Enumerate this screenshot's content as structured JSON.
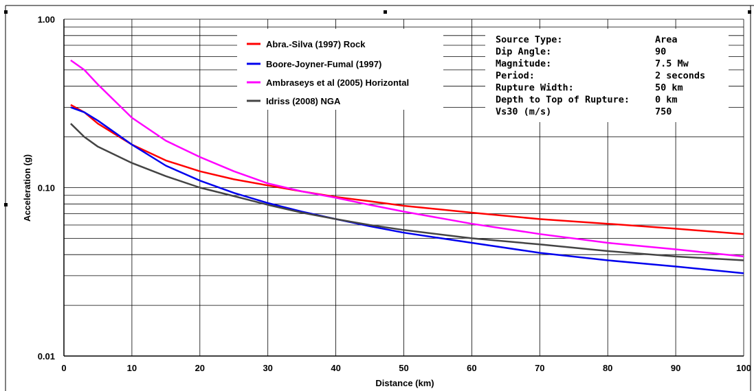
{
  "chart_data": {
    "type": "line",
    "xlabel": "Distance (km)",
    "ylabel": "Acceleration (g)",
    "xlim": [
      0,
      100
    ],
    "ylim": [
      0.01,
      1.0
    ],
    "y_scale": "log",
    "x_ticks": [
      "0",
      "10",
      "20",
      "30",
      "40",
      "50",
      "60",
      "70",
      "80",
      "90",
      "100"
    ],
    "y_ticks": [
      "1.00",
      "0.10",
      "0.01"
    ],
    "grid": true,
    "legend_position": "top-left",
    "series": [
      {
        "name": "Abra.-Silva (1997) Rock",
        "color": "#ff0000",
        "x": [
          1,
          3,
          5,
          10,
          15,
          20,
          25,
          30,
          35,
          40,
          45,
          50,
          60,
          70,
          80,
          90,
          100
        ],
        "y": [
          0.31,
          0.28,
          0.24,
          0.18,
          0.145,
          0.125,
          0.112,
          0.103,
          0.095,
          0.088,
          0.083,
          0.078,
          0.071,
          0.065,
          0.061,
          0.057,
          0.053
        ]
      },
      {
        "name": "Boore-Joyner-Fumal (1997)",
        "color": "#0000ee",
        "x": [
          1,
          3,
          5,
          10,
          15,
          20,
          25,
          30,
          35,
          40,
          45,
          50,
          60,
          70,
          80,
          90,
          100
        ],
        "y": [
          0.3,
          0.28,
          0.25,
          0.18,
          0.135,
          0.11,
          0.093,
          0.081,
          0.072,
          0.065,
          0.059,
          0.054,
          0.047,
          0.041,
          0.037,
          0.034,
          0.031
        ]
      },
      {
        "name": "Ambraseys et al (2005) Horizontal",
        "color": "#ff00ff",
        "x": [
          1,
          3,
          5,
          10,
          15,
          20,
          25,
          30,
          35,
          40,
          45,
          50,
          60,
          70,
          80,
          90,
          100
        ],
        "y": [
          0.57,
          0.5,
          0.41,
          0.26,
          0.19,
          0.152,
          0.125,
          0.106,
          0.095,
          0.087,
          0.079,
          0.072,
          0.061,
          0.053,
          0.047,
          0.043,
          0.039
        ]
      },
      {
        "name": "Idriss (2008) NGA",
        "color": "#444444",
        "x": [
          1,
          3,
          5,
          10,
          15,
          20,
          25,
          30,
          35,
          40,
          45,
          50,
          60,
          70,
          80,
          90,
          100
        ],
        "y": [
          0.24,
          0.2,
          0.175,
          0.14,
          0.117,
          0.1,
          0.089,
          0.079,
          0.071,
          0.065,
          0.06,
          0.056,
          0.05,
          0.046,
          0.042,
          0.039,
          0.037
        ]
      }
    ],
    "info_box": [
      {
        "label": "Source Type:",
        "value": "Area"
      },
      {
        "label": "Dip Angle:",
        "value": "90"
      },
      {
        "label": "Magnitude:",
        "value": "7.5 Mw"
      },
      {
        "label": "Period:",
        "value": "2 seconds"
      },
      {
        "label": "Rupture Width:",
        "value": "50 km"
      },
      {
        "label": "Depth to Top of Rupture:",
        "value": "0 km"
      },
      {
        "label": "Vs30 (m/s)",
        "value": "750"
      }
    ]
  }
}
